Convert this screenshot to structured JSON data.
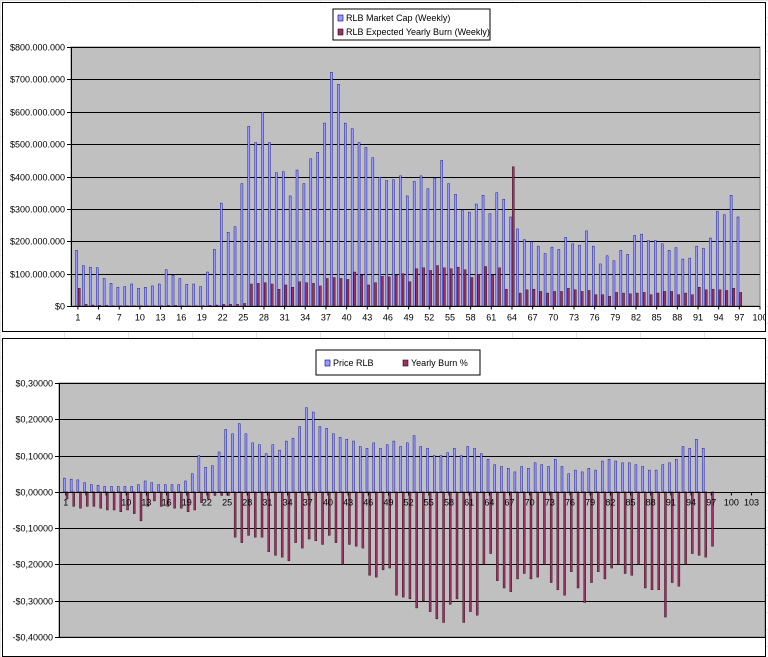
{
  "colors": {
    "plot_area": "#c0c0c0",
    "series1_fill": "#9999ff",
    "series1_border": "#000080",
    "series2_fill": "#993366",
    "series2_border": "#330011",
    "gridline": "#000000"
  },
  "chart_data": [
    {
      "type": "bar",
      "title": "",
      "xlabel": "",
      "ylabel": "",
      "ylim": [
        0,
        800000000
      ],
      "xlim": [
        0,
        100
      ],
      "y_ticks": [
        0,
        100000000,
        200000000,
        300000000,
        400000000,
        500000000,
        600000000,
        700000000,
        800000000
      ],
      "y_tick_labels": [
        "$0",
        "$100.000.000",
        "$200.000.000",
        "$300.000.000",
        "$400.000.000",
        "$500.000.000",
        "$600.000.000",
        "$700.000.000",
        "$800.000.000"
      ],
      "x_ticks": [
        1,
        4,
        7,
        10,
        13,
        16,
        19,
        22,
        25,
        28,
        31,
        34,
        37,
        40,
        43,
        46,
        49,
        52,
        55,
        58,
        61,
        64,
        67,
        70,
        73,
        76,
        79,
        82,
        85,
        88,
        91,
        94,
        97,
        100
      ],
      "grid": "horizontal",
      "legend": "top-center",
      "series": [
        {
          "name": "RLB Market Cap (Weekly)",
          "color": "#9999ff",
          "values": [
            172000000,
            125000000,
            120000000,
            118000000,
            85000000,
            70000000,
            58000000,
            60000000,
            68000000,
            55000000,
            58000000,
            62000000,
            68000000,
            112000000,
            95000000,
            85000000,
            67000000,
            68000000,
            60000000,
            105000000,
            175000000,
            318000000,
            228000000,
            245000000,
            378000000,
            555000000,
            505000000,
            598000000,
            505000000,
            412000000,
            415000000,
            340000000,
            420000000,
            378000000,
            455000000,
            475000000,
            565000000,
            722000000,
            685000000,
            565000000,
            548000000,
            505000000,
            490000000,
            458000000,
            398000000,
            388000000,
            390000000,
            402000000,
            340000000,
            385000000,
            402000000,
            362000000,
            395000000,
            450000000,
            378000000,
            345000000,
            295000000,
            290000000,
            315000000,
            342000000,
            285000000,
            350000000,
            330000000,
            275000000,
            238000000,
            205000000,
            198000000,
            185000000,
            162000000,
            182000000,
            175000000,
            212000000,
            192000000,
            188000000,
            232000000,
            185000000,
            130000000,
            155000000,
            140000000,
            172000000,
            160000000,
            218000000,
            222000000,
            202000000,
            202000000,
            192000000,
            172000000,
            180000000,
            145000000,
            148000000,
            185000000,
            178000000,
            210000000,
            292000000,
            282000000,
            342000000,
            275000000
          ]
        },
        {
          "name": "RLB Expected Yearly Burn (Weekly)",
          "color": "#993366",
          "values": [
            55000000,
            5000000,
            3000000,
            2000000,
            2000000,
            1000000,
            1000000,
            1000000,
            1000000,
            1000000,
            1000000,
            1000000,
            1000000,
            2000000,
            2000000,
            1000000,
            1000000,
            1000000,
            1000000,
            2000000,
            3000000,
            5000000,
            5000000,
            5000000,
            8000000,
            68000000,
            70000000,
            72000000,
            68000000,
            52000000,
            65000000,
            58000000,
            75000000,
            72000000,
            70000000,
            62000000,
            85000000,
            88000000,
            85000000,
            82000000,
            105000000,
            95000000,
            65000000,
            72000000,
            92000000,
            90000000,
            95000000,
            100000000,
            75000000,
            115000000,
            118000000,
            110000000,
            125000000,
            118000000,
            115000000,
            120000000,
            112000000,
            88000000,
            98000000,
            122000000,
            95000000,
            118000000,
            52000000,
            430000000,
            40000000,
            50000000,
            52000000,
            45000000,
            40000000,
            45000000,
            45000000,
            55000000,
            50000000,
            45000000,
            48000000,
            35000000,
            35000000,
            30000000,
            42000000,
            40000000,
            38000000,
            40000000,
            42000000,
            35000000,
            40000000,
            45000000,
            45000000,
            35000000,
            40000000,
            35000000,
            58000000,
            50000000,
            52000000,
            50000000,
            48000000,
            55000000,
            42000000
          ]
        }
      ]
    },
    {
      "type": "bar",
      "title": "",
      "xlabel": "",
      "ylabel": "",
      "ylim": [
        -0.4,
        0.3
      ],
      "xlim": [
        0,
        105
      ],
      "y_ticks": [
        -0.4,
        -0.3,
        -0.2,
        -0.1,
        0,
        0.1,
        0.2,
        0.3
      ],
      "y_tick_labels": [
        "-$0,40000",
        "-$0,30000",
        "-$0,20000",
        "-$0,10000",
        "$0,00000",
        "$0,10000",
        "$0,20000",
        "$0,30000"
      ],
      "x_ticks": [
        1,
        4,
        7,
        10,
        13,
        16,
        19,
        22,
        25,
        28,
        31,
        34,
        37,
        40,
        43,
        46,
        49,
        52,
        55,
        58,
        61,
        64,
        67,
        70,
        73,
        76,
        79,
        82,
        85,
        88,
        91,
        94,
        97,
        100,
        103
      ],
      "x_tick_labels": [
        "1",
        "",
        "",
        "10",
        "13",
        "16",
        "19",
        "22",
        "25",
        "28",
        "31",
        "34",
        "37",
        "40",
        "43",
        "46",
        "49",
        "52",
        "55",
        "58",
        "61",
        "64",
        "67",
        "70",
        "73",
        "76",
        "79",
        "82",
        "85",
        "88",
        "91",
        "94",
        "97",
        "100",
        "103"
      ],
      "grid": "horizontal",
      "legend": "top-center",
      "series": [
        {
          "name": "Price RLB",
          "color": "#9999ff",
          "values": [
            0.038,
            0.035,
            0.033,
            0.025,
            0.02,
            0.018,
            0.015,
            0.015,
            0.015,
            0.015,
            0.015,
            0.02,
            0.03,
            0.025,
            0.02,
            0.02,
            0.02,
            0.02,
            0.03,
            0.05,
            0.1,
            0.068,
            0.072,
            0.11,
            0.172,
            0.16,
            0.188,
            0.16,
            0.135,
            0.13,
            0.105,
            0.13,
            0.115,
            0.14,
            0.148,
            0.18,
            0.232,
            0.22,
            0.18,
            0.175,
            0.16,
            0.15,
            0.145,
            0.14,
            0.125,
            0.12,
            0.135,
            0.12,
            0.13,
            0.14,
            0.125,
            0.135,
            0.155,
            0.125,
            0.12,
            0.1,
            0.1,
            0.108,
            0.12,
            0.1,
            0.125,
            0.12,
            0.105,
            0.09,
            0.075,
            0.07,
            0.065,
            0.055,
            0.07,
            0.065,
            0.08,
            0.075,
            0.07,
            0.09,
            0.07,
            0.05,
            0.06,
            0.055,
            0.065,
            0.06,
            0.085,
            0.09,
            0.085,
            0.08,
            0.08,
            0.075,
            0.07,
            0.06,
            0.06,
            0.075,
            0.08,
            0.09,
            0.125,
            0.12,
            0.145,
            0.12
          ]
        },
        {
          "name": "Yearly Burn %",
          "color": "#993366",
          "values": [
            -0.02,
            -0.04,
            -0.045,
            -0.04,
            -0.04,
            -0.045,
            -0.05,
            -0.05,
            -0.055,
            -0.05,
            -0.06,
            -0.08,
            -0.04,
            -0.025,
            -0.04,
            -0.04,
            -0.045,
            -0.045,
            -0.055,
            -0.05,
            -0.03,
            -0.02,
            -0.01,
            -0.01,
            -0.01,
            -0.125,
            -0.14,
            -0.12,
            -0.125,
            -0.125,
            -0.165,
            -0.175,
            -0.18,
            -0.19,
            -0.14,
            -0.155,
            -0.13,
            -0.135,
            -0.145,
            -0.12,
            -0.14,
            -0.2,
            -0.145,
            -0.15,
            -0.155,
            -0.23,
            -0.235,
            -0.215,
            -0.21,
            -0.285,
            -0.29,
            -0.295,
            -0.32,
            -0.3,
            -0.33,
            -0.35,
            -0.36,
            -0.31,
            -0.295,
            -0.36,
            -0.33,
            -0.34,
            -0.2,
            -0.17,
            -0.245,
            -0.265,
            -0.275,
            -0.24,
            -0.225,
            -0.24,
            -0.235,
            -0.2,
            -0.25,
            -0.27,
            -0.285,
            -0.22,
            -0.265,
            -0.305,
            -0.25,
            -0.22,
            -0.24,
            -0.21,
            -0.2,
            -0.225,
            -0.23,
            -0.2,
            -0.265,
            -0.27,
            -0.27,
            -0.345,
            -0.25,
            -0.26,
            -0.2,
            -0.17,
            -0.175,
            -0.18,
            -0.15
          ]
        }
      ]
    }
  ]
}
